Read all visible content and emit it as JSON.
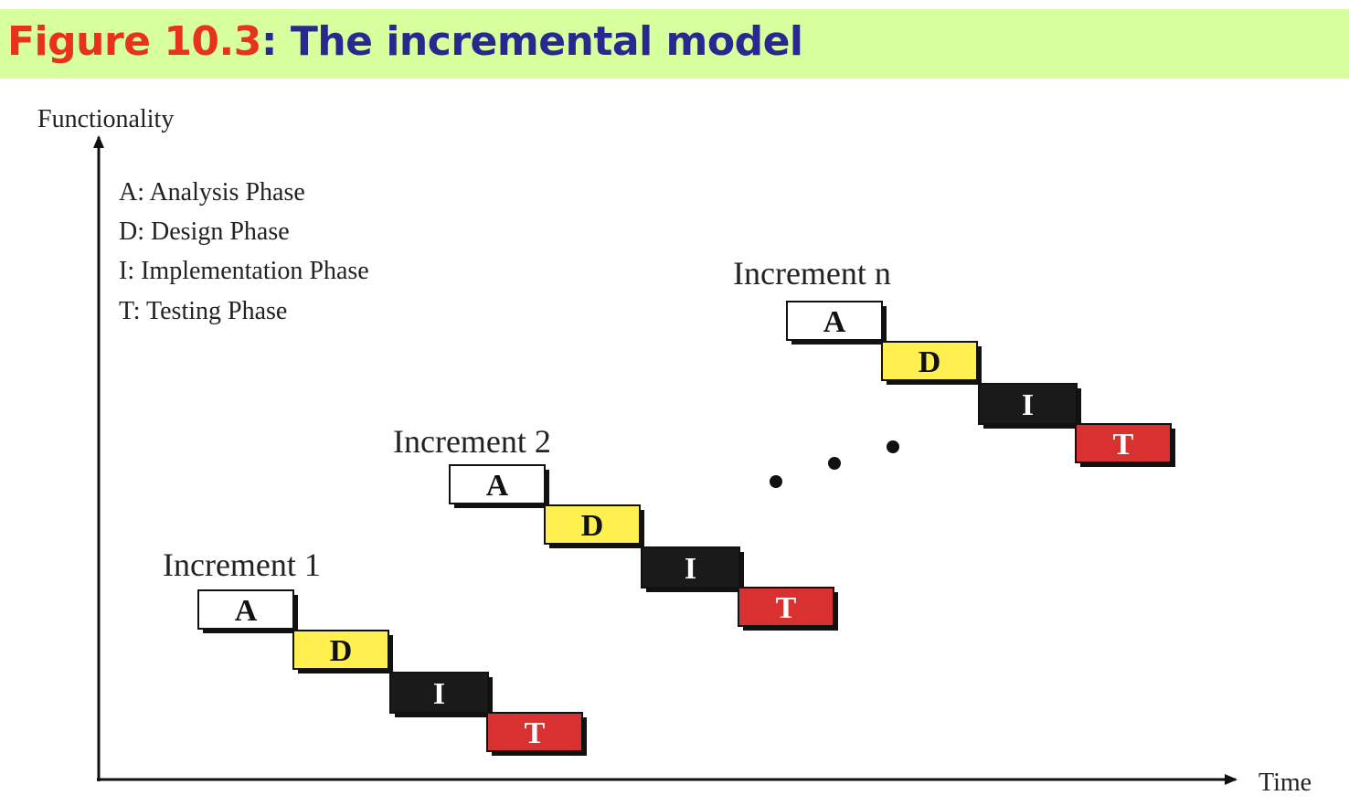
{
  "header": {
    "figure_number": "Figure 10.3",
    "separator": ":",
    "title": "The incremental model"
  },
  "axes": {
    "y_label": "Functionality",
    "x_label": "Time"
  },
  "legend": [
    "A: Analysis Phase",
    "D: Design Phase",
    "I: Implementation Phase",
    "T: Testing Phase"
  ],
  "increments": [
    {
      "label": "Increment 1",
      "phases": [
        "A",
        "D",
        "I",
        "T"
      ]
    },
    {
      "label": "Increment 2",
      "phases": [
        "A",
        "D",
        "I",
        "T"
      ]
    },
    {
      "label": "Increment n",
      "phases": [
        "A",
        "D",
        "I",
        "T"
      ]
    }
  ],
  "phase_colors": {
    "A": "#ffffff",
    "D": "#fff04f",
    "I": "#1a1a1a",
    "T": "#d93030"
  },
  "phase_text_colors": {
    "A": "#111111",
    "D": "#111111",
    "I": "#ffffff",
    "T": "#ffffff"
  }
}
